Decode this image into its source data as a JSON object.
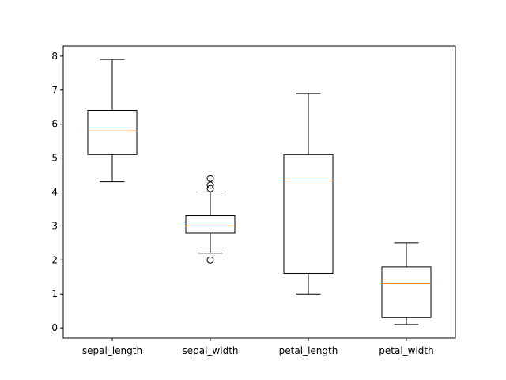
{
  "chart_data": {
    "type": "box",
    "title": "",
    "xlabel": "",
    "ylabel": "",
    "ylim": [
      -0.3,
      8.3
    ],
    "yticks": [
      0,
      1,
      2,
      3,
      4,
      5,
      6,
      7,
      8
    ],
    "grid": false,
    "categories": [
      "sepal_length",
      "sepal_width",
      "petal_length",
      "petal_width"
    ],
    "boxes": [
      {
        "label": "sepal_length",
        "whisker_low": 4.3,
        "q1": 5.1,
        "median": 5.8,
        "q3": 6.4,
        "whisker_high": 7.9,
        "outliers": []
      },
      {
        "label": "sepal_width",
        "whisker_low": 2.2,
        "q1": 2.8,
        "median": 3.0,
        "q3": 3.3,
        "whisker_high": 4.0,
        "outliers": [
          4.4,
          4.2,
          4.1,
          2.0
        ]
      },
      {
        "label": "petal_length",
        "whisker_low": 1.0,
        "q1": 1.6,
        "median": 4.35,
        "q3": 5.1,
        "whisker_high": 6.9,
        "outliers": []
      },
      {
        "label": "petal_width",
        "whisker_low": 0.1,
        "q1": 0.3,
        "median": 1.3,
        "q3": 1.8,
        "whisker_high": 2.5,
        "outliers": []
      }
    ],
    "colors": {
      "box": "#000000",
      "median": "#ff7f0e",
      "background": "#ffffff"
    }
  }
}
